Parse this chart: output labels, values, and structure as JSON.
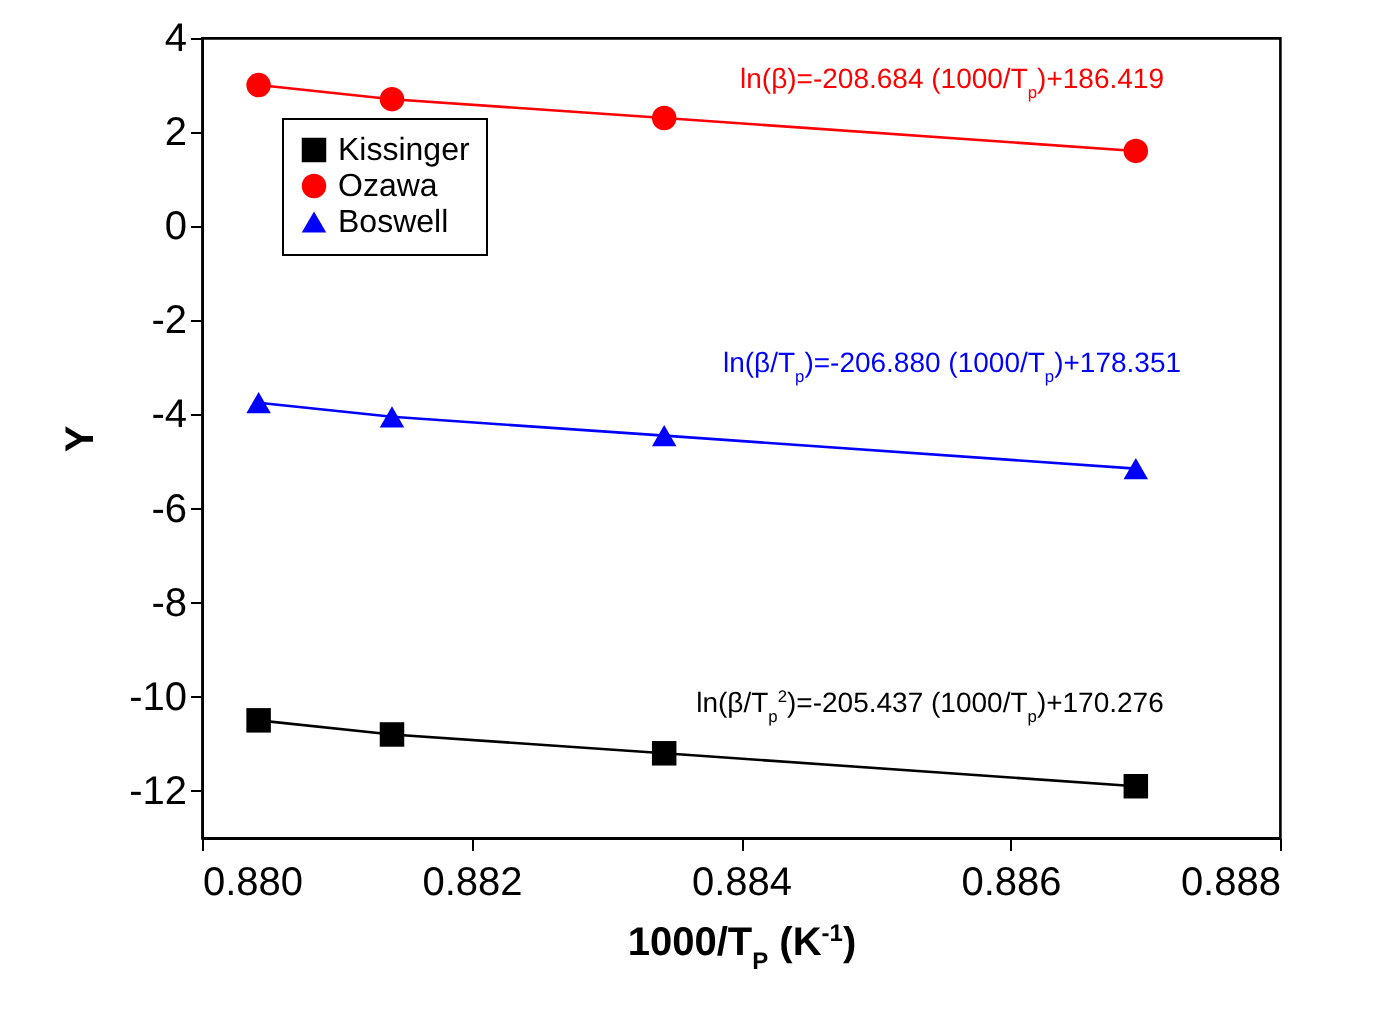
{
  "chart_data": {
    "type": "line",
    "xlabel": "1000/T$_{P}$ (K$^{-1}$)",
    "ylabel": "Y",
    "x": [
      0.88042,
      0.88141,
      0.88343,
      0.88693
    ],
    "series": [
      {
        "name": "Kissinger",
        "color": "#000000",
        "marker": "square",
        "values": [
          -10.5,
          -10.8,
          -11.2,
          -11.9
        ]
      },
      {
        "name": "Ozawa",
        "color": "#ff0000",
        "marker": "circle",
        "values": [
          3.0,
          2.7,
          2.3,
          1.6
        ]
      },
      {
        "name": "Boswell",
        "color": "#0000ff",
        "marker": "triangle",
        "values": [
          -3.75,
          -4.05,
          -4.45,
          -5.15
        ]
      }
    ],
    "annotations": [
      "ln(β/T$_{p}$$^{2}$)=-205.437 (1000/T$_{p}$)+170.276",
      "ln(β)=-208.684 (1000/T$_{p}$)+186.419",
      "ln(β/T$_{p}$)=-206.880 (1000/T$_{p}$)+178.351"
    ],
    "xlim": [
      0.88,
      0.888
    ],
    "xticks": [
      {
        "value": 0.88,
        "label": "0.880"
      },
      {
        "value": 0.882,
        "label": "0.882"
      },
      {
        "value": 0.884,
        "label": "0.884"
      },
      {
        "value": 0.886,
        "label": "0.886"
      },
      {
        "value": 0.888,
        "label": "0.888"
      }
    ],
    "ylim": [
      -13,
      4
    ],
    "yticks": [
      -12,
      -10,
      -8,
      -6,
      -4,
      -2,
      0,
      2,
      4
    ],
    "legend": "top left",
    "grid": false,
    "line_style": "solid"
  }
}
